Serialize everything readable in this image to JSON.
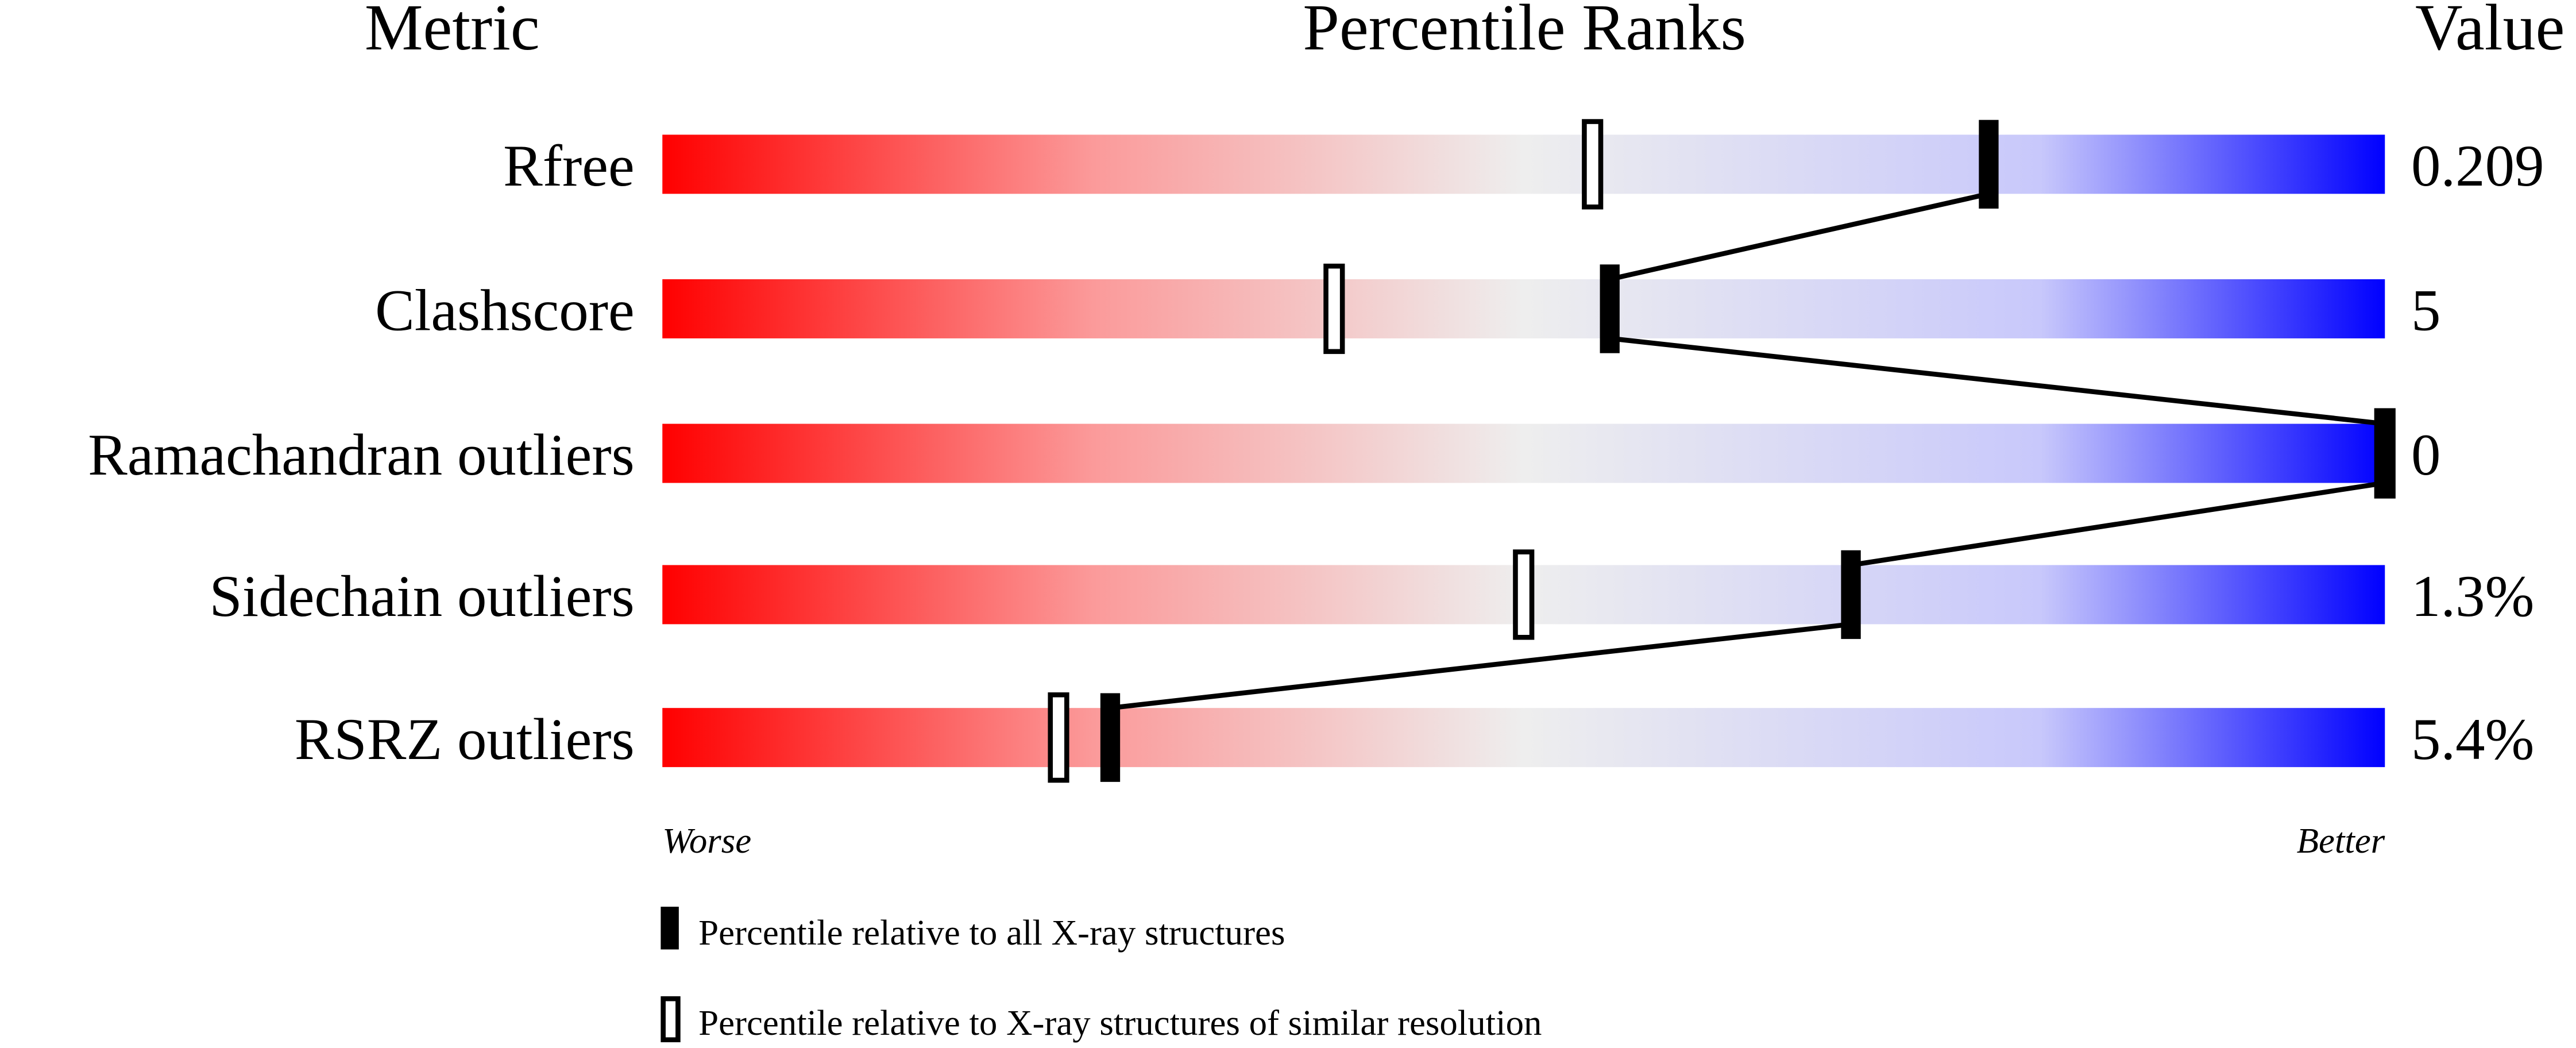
{
  "chart_data": {
    "type": "bar",
    "headers": {
      "metric": "Metric",
      "ranks": "Percentile Ranks",
      "value": "Value"
    },
    "xlim": [
      0,
      100
    ],
    "metrics": [
      {
        "name": "Rfree",
        "value": "0.209",
        "percentile_all": 77,
        "percentile_similar": 54
      },
      {
        "name": "Clashscore",
        "value": "5",
        "percentile_all": 55,
        "percentile_similar": 39
      },
      {
        "name": "Ramachandran outliers",
        "value": "0",
        "percentile_all": 100,
        "percentile_similar": 100
      },
      {
        "name": "Sidechain outliers",
        "value": "1.3%",
        "percentile_all": 69,
        "percentile_similar": 50
      },
      {
        "name": "RSRZ outliers",
        "value": "5.4%",
        "percentile_all": 26,
        "percentile_similar": 23
      }
    ],
    "axis_labels": {
      "left": "Worse",
      "right": "Better"
    },
    "legend": [
      {
        "marker": "filled",
        "label": "Percentile relative to all X-ray structures"
      },
      {
        "marker": "hollow",
        "label": "Percentile relative to X-ray structures of similar resolution"
      }
    ],
    "colors": {
      "worse": "#ff0000",
      "middle": "#eeeeee",
      "better": "#0000ff"
    }
  }
}
